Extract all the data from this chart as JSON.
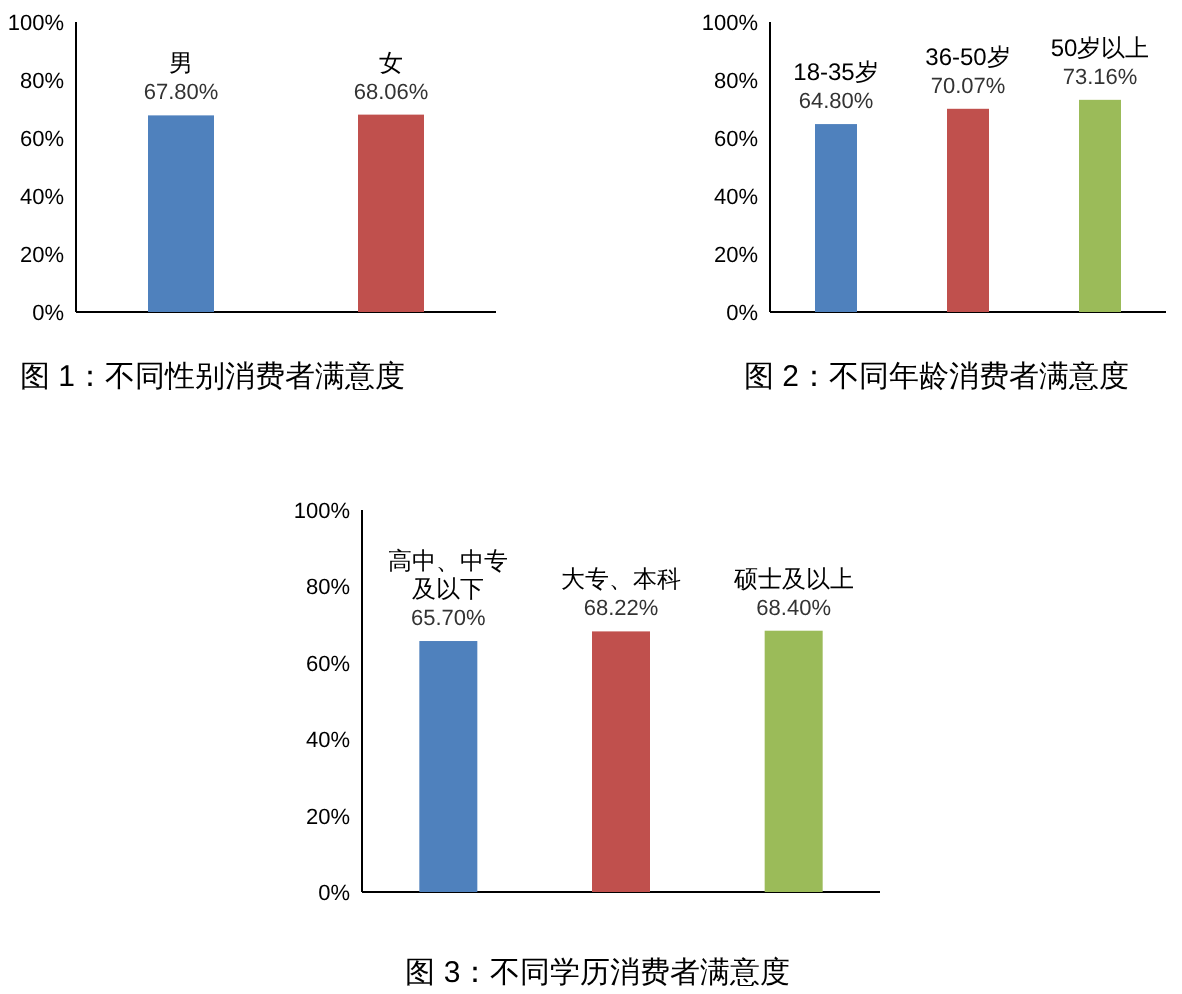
{
  "chart_data": [
    {
      "type": "bar",
      "title": "图 1：不同性别消费者满意度",
      "categories": [
        "男",
        "女"
      ],
      "values": [
        67.8,
        68.06
      ],
      "value_labels": [
        "67.80%",
        "68.06%"
      ],
      "colors": [
        "#4f81bd",
        "#c0504d"
      ],
      "ylim": [
        0,
        100
      ],
      "yticks": [
        {
          "value": 0,
          "label": "0%"
        },
        {
          "value": 20,
          "label": "20%"
        },
        {
          "value": 40,
          "label": "40%"
        },
        {
          "value": 60,
          "label": "60%"
        },
        {
          "value": 80,
          "label": "80%"
        },
        {
          "value": 100,
          "label": "100%"
        }
      ]
    },
    {
      "type": "bar",
      "title": "图 2：不同年龄消费者满意度",
      "categories": [
        "18-35岁",
        "36-50岁",
        "50岁以上"
      ],
      "values": [
        64.8,
        70.07,
        73.16
      ],
      "value_labels": [
        "64.80%",
        "70.07%",
        "73.16%"
      ],
      "colors": [
        "#4f81bd",
        "#c0504d",
        "#9bbb59"
      ],
      "ylim": [
        0,
        100
      ],
      "yticks": [
        {
          "value": 0,
          "label": "0%"
        },
        {
          "value": 20,
          "label": "20%"
        },
        {
          "value": 40,
          "label": "40%"
        },
        {
          "value": 60,
          "label": "60%"
        },
        {
          "value": 80,
          "label": "80%"
        },
        {
          "value": 100,
          "label": "100%"
        }
      ]
    },
    {
      "type": "bar",
      "title": "图 3：不同学历消费者满意度",
      "categories": [
        "高中、中专及以下",
        "大专、本科",
        "硕士及以上"
      ],
      "values": [
        65.7,
        68.22,
        68.4
      ],
      "value_labels": [
        "65.70%",
        "68.22%",
        "68.40%"
      ],
      "colors": [
        "#4f81bd",
        "#c0504d",
        "#9bbb59"
      ],
      "ylim": [
        0,
        100
      ],
      "yticks": [
        {
          "value": 0,
          "label": "0%"
        },
        {
          "value": 20,
          "label": "20%"
        },
        {
          "value": 40,
          "label": "40%"
        },
        {
          "value": 60,
          "label": "60%"
        },
        {
          "value": 80,
          "label": "80%"
        },
        {
          "value": 100,
          "label": "100%"
        }
      ]
    }
  ]
}
